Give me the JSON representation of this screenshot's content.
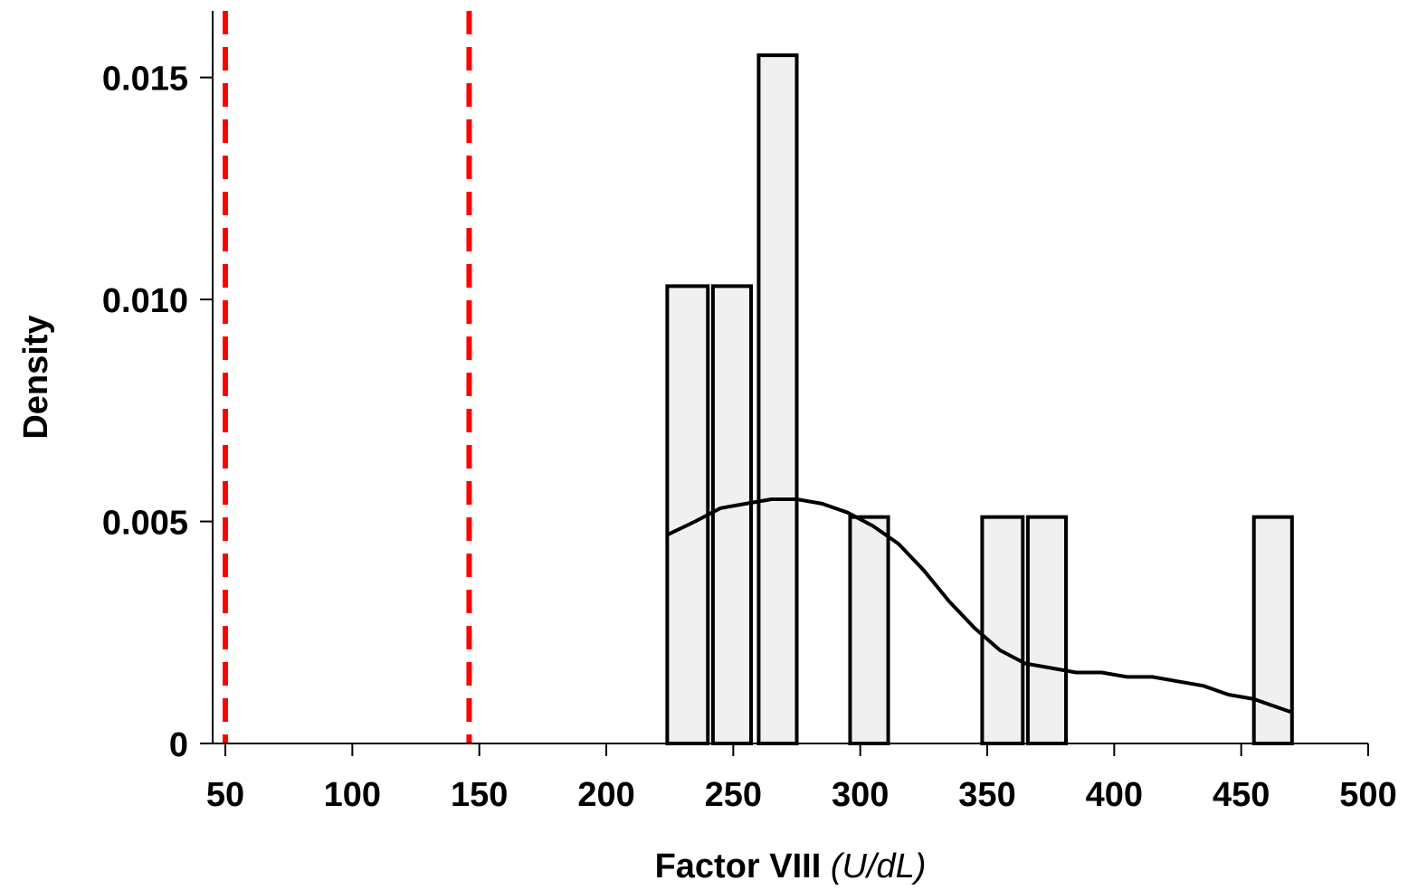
{
  "chart_data": {
    "type": "bar",
    "subtype": "histogram with density curve",
    "xlabel": "Factor VIII",
    "xlabel_unit": "(U/dL)",
    "ylabel": "Density",
    "xlim": [
      45,
      500
    ],
    "ylim": [
      0,
      0.0165
    ],
    "x_ticks": [
      "50",
      "100",
      "150",
      "200",
      "250",
      "300",
      "350",
      "400",
      "450",
      "500"
    ],
    "y_ticks": [
      "0",
      "0.005",
      "0.010",
      "0.015"
    ],
    "grid": false,
    "bars": [
      {
        "x0": 224,
        "x1": 240,
        "density": 0.0103
      },
      {
        "x0": 242,
        "x1": 257,
        "density": 0.0103
      },
      {
        "x0": 260,
        "x1": 275,
        "density": 0.0155
      },
      {
        "x0": 296,
        "x1": 311,
        "density": 0.0051
      },
      {
        "x0": 348,
        "x1": 364,
        "density": 0.0051
      },
      {
        "x0": 366,
        "x1": 381,
        "density": 0.0051
      },
      {
        "x0": 455,
        "x1": 470,
        "density": 0.0051
      }
    ],
    "density_curve": [
      [
        224,
        0.0047
      ],
      [
        235,
        0.005
      ],
      [
        245,
        0.0053
      ],
      [
        255,
        0.0054
      ],
      [
        265,
        0.0055
      ],
      [
        275,
        0.0055
      ],
      [
        285,
        0.0054
      ],
      [
        295,
        0.0052
      ],
      [
        305,
        0.0049
      ],
      [
        315,
        0.0045
      ],
      [
        325,
        0.0039
      ],
      [
        335,
        0.0032
      ],
      [
        345,
        0.0026
      ],
      [
        355,
        0.0021
      ],
      [
        365,
        0.0018
      ],
      [
        375,
        0.0017
      ],
      [
        385,
        0.0016
      ],
      [
        395,
        0.0016
      ],
      [
        405,
        0.0015
      ],
      [
        415,
        0.0015
      ],
      [
        425,
        0.0014
      ],
      [
        435,
        0.0013
      ],
      [
        445,
        0.0011
      ],
      [
        455,
        0.001
      ],
      [
        470,
        0.0007
      ]
    ],
    "reference_lines": [
      {
        "x": 50,
        "color": "#ff0000",
        "style": "dashed"
      },
      {
        "x": 146,
        "color": "#ff0000",
        "style": "dashed"
      }
    ],
    "colors": {
      "bar_fill": "#f0f0f0",
      "bar_stroke": "#000000",
      "curve": "#000000",
      "reference": "#ff0000"
    }
  }
}
